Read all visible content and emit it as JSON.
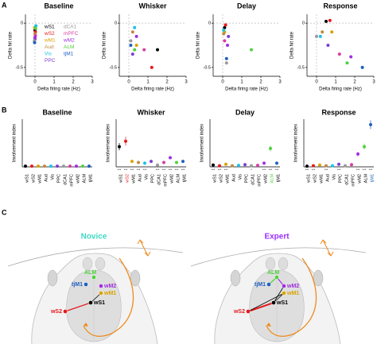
{
  "panel_labels": [
    "A",
    "B",
    "C"
  ],
  "areas": [
    {
      "name": "wS1",
      "color": "#000000"
    },
    {
      "name": "wS2",
      "color": "#e41a1c"
    },
    {
      "name": "wM1",
      "color": "#d9a300"
    },
    {
      "name": "Aud",
      "color": "#c08a3e"
    },
    {
      "name": "Vis",
      "color": "#19c3e6"
    },
    {
      "name": "PPC",
      "color": "#7b3fd1"
    },
    {
      "name": "dCA1",
      "color": "#9a9a9a"
    },
    {
      "name": "mPFC",
      "color": "#d63fa0"
    },
    {
      "name": "wM2",
      "color": "#a02fe0"
    },
    {
      "name": "ALM",
      "color": "#4fd13c"
    },
    {
      "name": "tjM1",
      "color": "#1f5fbf"
    }
  ],
  "chart_data": [
    {
      "type": "scatter",
      "title": "Baseline",
      "x_label": "Delta firing rate (Hz)",
      "y_label": "Delta hit rate",
      "legend": true,
      "xlim": [
        -0.5,
        3
      ],
      "xticks": [
        0,
        1,
        2,
        3
      ],
      "ylim": [
        -0.6,
        0.1
      ],
      "yticks": [
        -0.5,
        0
      ],
      "x": [
        0,
        0.02,
        -0.02,
        0,
        0.05,
        0,
        -0.03,
        0.02,
        0,
        0.03,
        -0.02
      ],
      "values": [
        -0.08,
        -0.1,
        -0.05,
        -0.12,
        -0.03,
        -0.18,
        -0.2,
        -0.14,
        -0.16,
        -0.06,
        -0.22
      ]
    },
    {
      "type": "scatter",
      "title": "Whisker",
      "x_label": "Delta firing rate (Hz)",
      "y_label": "Delta hit rate",
      "legend": false,
      "xlim": [
        -0.5,
        3
      ],
      "xticks": [
        0,
        1,
        2,
        3
      ],
      "ylim": [
        -0.6,
        0.1
      ],
      "yticks": [
        -0.5,
        0
      ],
      "x": [
        1.5,
        1.2,
        0.4,
        0.2,
        0.3,
        0.2,
        0.1,
        0.8,
        0.4,
        0.3,
        0.1
      ],
      "values": [
        -0.3,
        -0.5,
        -0.25,
        -0.1,
        -0.05,
        -0.35,
        -0.2,
        -0.3,
        -0.15,
        -0.3,
        -0.25
      ]
    },
    {
      "type": "scatter",
      "title": "Delay",
      "x_label": "Delta firing rate (Hz)",
      "y_label": "Delta hit rate",
      "legend": false,
      "xlim": [
        -0.5,
        3
      ],
      "xticks": [
        0,
        1,
        2,
        3
      ],
      "ylim": [
        -0.6,
        0.1
      ],
      "yticks": [
        -0.5,
        0
      ],
      "x": [
        0.1,
        0.15,
        0.1,
        0.05,
        0.05,
        0.3,
        0.2,
        0.1,
        0.25,
        1.5,
        0.2
      ],
      "values": [
        -0.05,
        -0.02,
        -0.1,
        -0.12,
        -0.08,
        -0.15,
        -0.45,
        -0.2,
        -0.25,
        -0.3,
        -0.4
      ]
    },
    {
      "type": "scatter",
      "title": "Response",
      "x_label": "Delta firing rate (Hz)",
      "y_label": "Delta hit rate",
      "legend": false,
      "xlim": [
        -0.5,
        3
      ],
      "xticks": [
        0,
        1,
        2,
        3
      ],
      "ylim": [
        -0.6,
        0.1
      ],
      "yticks": [
        -0.5,
        0
      ],
      "x": [
        0.5,
        0.7,
        0.8,
        0.3,
        0.2,
        0.6,
        0,
        1.2,
        1.8,
        1.6,
        2.4
      ],
      "values": [
        0.02,
        0.03,
        -0.1,
        -0.1,
        -0.15,
        -0.25,
        -0.15,
        -0.35,
        -0.38,
        -0.45,
        -0.5
      ]
    },
    {
      "type": "dot",
      "title": "Baseline",
      "y_label": "Involvement index",
      "ylim": [
        0,
        1.3
      ],
      "highlight": [],
      "values": [
        0.02,
        0.02,
        0.02,
        0.02,
        0.02,
        0.02,
        0.02,
        0.02,
        0.02,
        0.02,
        0.02
      ],
      "errors": [
        0.01,
        0.01,
        0.01,
        0.01,
        0.01,
        0.01,
        0.01,
        0.01,
        0.01,
        0.01,
        0.01
      ],
      "significance": [
        null,
        null,
        null,
        null,
        null,
        null,
        null,
        null,
        null,
        null,
        null
      ]
    },
    {
      "type": "dot",
      "title": "Whisker",
      "y_label": "Involvement index",
      "ylim": [
        0,
        1.3
      ],
      "highlight": [
        0,
        1
      ],
      "values": [
        0.55,
        0.7,
        0.15,
        0.12,
        0.1,
        0.15,
        0.05,
        0.12,
        0.25,
        0.12,
        0.15
      ],
      "errors": [
        0.1,
        0.12,
        0.03,
        0.03,
        0.02,
        0.03,
        0.02,
        0.03,
        0.04,
        0.03,
        0.03
      ],
      "significance": [
        "***",
        "***",
        "***",
        "***",
        "***",
        null,
        "***",
        "***",
        "***",
        "***",
        "***"
      ]
    },
    {
      "type": "dot",
      "title": "Delay",
      "y_label": "Involvement index",
      "ylim": [
        0,
        1.3
      ],
      "highlight": [
        9
      ],
      "values": [
        0.05,
        0.03,
        0.07,
        0.03,
        0.04,
        0.06,
        0.03,
        0.04,
        0.1,
        0.5,
        0.1
      ],
      "errors": [
        0.02,
        0.01,
        0.02,
        0.01,
        0.01,
        0.02,
        0.01,
        0.01,
        0.03,
        0.08,
        0.03
      ],
      "significance": [
        "***",
        "***",
        "***",
        null,
        null,
        null,
        "*",
        null,
        "***",
        "***",
        "***"
      ]
    },
    {
      "type": "dot",
      "title": "Response",
      "y_label": "Involvement index",
      "ylim": [
        0,
        1.3
      ],
      "highlight": [
        10
      ],
      "values": [
        0.02,
        0.03,
        0.05,
        0.03,
        0.03,
        0.07,
        0.03,
        0.06,
        0.35,
        0.55,
        1.15
      ],
      "errors": [
        0.01,
        0.01,
        0.02,
        0.01,
        0.01,
        0.02,
        0.01,
        0.02,
        0.06,
        0.08,
        0.12
      ],
      "significance": [
        "***",
        "***",
        null,
        "***",
        null,
        "***",
        null,
        null,
        "***",
        "***",
        "***"
      ]
    }
  ],
  "diagram": {
    "panels": [
      {
        "title": "Novice",
        "title_color": "#3fd9c4"
      },
      {
        "title": "Expert",
        "title_color": "#9b30ff"
      }
    ],
    "shown_areas": [
      9,
      10,
      8,
      2,
      1,
      0
    ]
  }
}
